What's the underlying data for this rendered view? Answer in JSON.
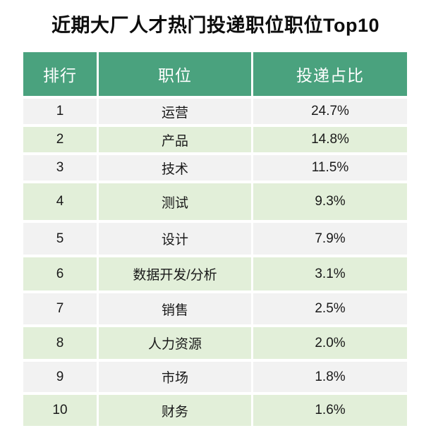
{
  "title": "近期大厂人才热门投递职位职位Top10",
  "table": {
    "columns": [
      "排行",
      "职位",
      "投递占比"
    ],
    "rows": [
      {
        "rank": "1",
        "position": "运营",
        "share": "24.7%"
      },
      {
        "rank": "2",
        "position": "产品",
        "share": "14.8%"
      },
      {
        "rank": "3",
        "position": "技术",
        "share": "11.5%"
      },
      {
        "rank": "4",
        "position": "测试",
        "share": "9.3%"
      },
      {
        "rank": "5",
        "position": "设计",
        "share": "7.9%"
      },
      {
        "rank": "6",
        "position": "数据开发/分析",
        "share": "3.1%"
      },
      {
        "rank": "7",
        "position": "销售",
        "share": "2.5%"
      },
      {
        "rank": "8",
        "position": "人力资源",
        "share": "2.0%"
      },
      {
        "rank": "9",
        "position": "市场",
        "share": "1.8%"
      },
      {
        "rank": "10",
        "position": "财务",
        "share": "1.6%"
      }
    ]
  },
  "colors": {
    "header_bg": "#4AA27E",
    "header_text": "#FFFFFF",
    "row_gray": "#F2F2F2",
    "row_green": "#E2EFD9",
    "text": "#1A1A1A",
    "background": "#FFFFFF"
  },
  "chart_data": {
    "type": "table",
    "title": "近期大厂人才热门投递职位职位Top10",
    "columns": [
      "排行",
      "职位",
      "投递占比"
    ],
    "categories": [
      "运营",
      "产品",
      "技术",
      "测试",
      "设计",
      "数据开发/分析",
      "销售",
      "人力资源",
      "市场",
      "财务"
    ],
    "values_percent": [
      24.7,
      14.8,
      11.5,
      9.3,
      7.9,
      3.1,
      2.5,
      2.0,
      1.8,
      1.6
    ]
  }
}
